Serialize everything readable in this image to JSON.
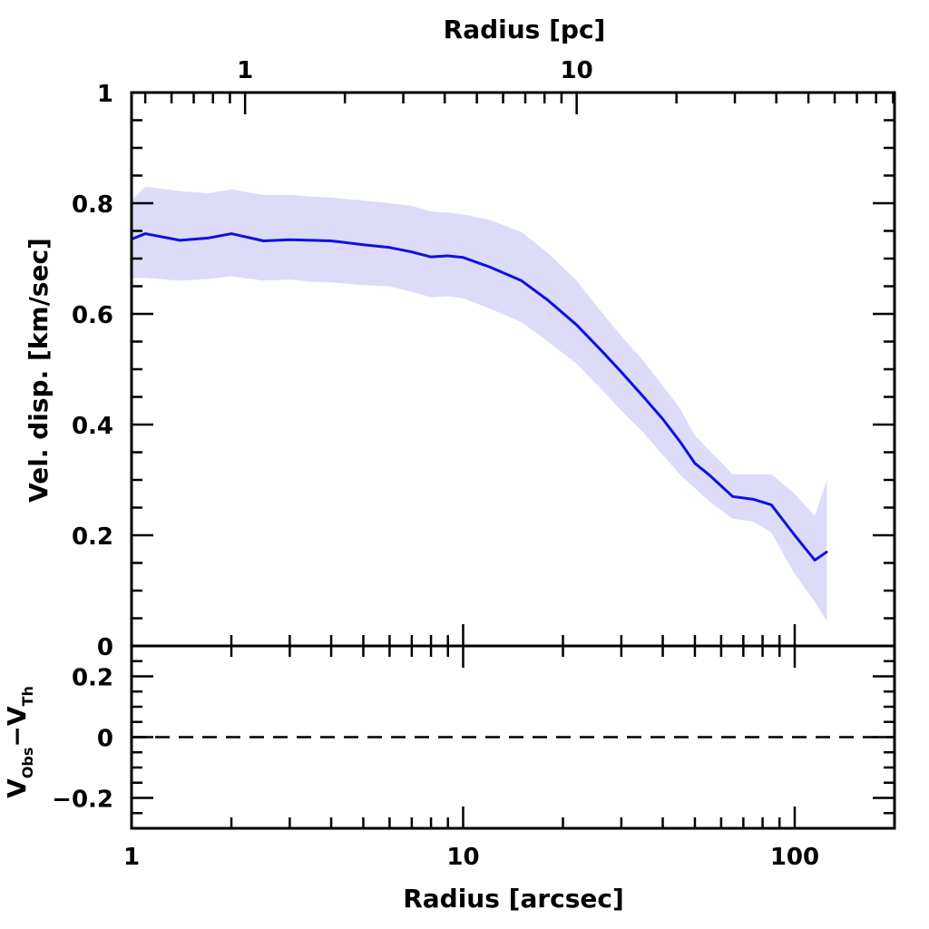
{
  "chart_data": {
    "type": "line",
    "x_scale": "log",
    "top_panel": {
      "ylabel": "Vel. disp. [km/sec]",
      "ylim": [
        0,
        1
      ],
      "yticks": [
        0,
        0.2,
        0.4,
        0.6,
        0.8,
        1
      ],
      "ytick_labels": [
        "0",
        "0.2",
        "0.4",
        "0.6",
        "0.8",
        "1"
      ],
      "series": [
        {
          "name": "velocity dispersion",
          "color": "#1010e0",
          "band_color": "#dcdcf8",
          "x": [
            1.0,
            1.1,
            1.4,
            1.7,
            2.0,
            2.5,
            3.0,
            3.5,
            4.0,
            5.0,
            6.0,
            7.0,
            8.0,
            9.0,
            10.0,
            12.0,
            15.0,
            18.0,
            22.0,
            26.0,
            30.0,
            35.0,
            40.0,
            45.0,
            50.0,
            55.0,
            65.0,
            75.0,
            85.0,
            100.0,
            115.0,
            125.0
          ],
          "y": [
            0.735,
            0.745,
            0.733,
            0.737,
            0.745,
            0.732,
            0.734,
            0.733,
            0.732,
            0.725,
            0.72,
            0.712,
            0.703,
            0.705,
            0.702,
            0.685,
            0.66,
            0.625,
            0.58,
            0.535,
            0.495,
            0.45,
            0.41,
            0.37,
            0.33,
            0.31,
            0.27,
            0.265,
            0.255,
            0.2,
            0.155,
            0.17
          ],
          "y_lower": [
            0.665,
            0.665,
            0.66,
            0.663,
            0.668,
            0.66,
            0.662,
            0.658,
            0.657,
            0.652,
            0.65,
            0.64,
            0.63,
            0.632,
            0.628,
            0.61,
            0.585,
            0.55,
            0.51,
            0.465,
            0.425,
            0.385,
            0.345,
            0.31,
            0.285,
            0.262,
            0.23,
            0.225,
            0.205,
            0.13,
            0.08,
            0.045
          ],
          "y_upper": [
            0.805,
            0.83,
            0.822,
            0.818,
            0.825,
            0.815,
            0.815,
            0.812,
            0.81,
            0.805,
            0.8,
            0.795,
            0.785,
            0.783,
            0.78,
            0.77,
            0.748,
            0.71,
            0.66,
            0.605,
            0.56,
            0.515,
            0.47,
            0.43,
            0.38,
            0.355,
            0.31,
            0.31,
            0.31,
            0.275,
            0.235,
            0.3
          ]
        }
      ]
    },
    "bottom_panel": {
      "ylabel_main": "V",
      "ylabel_sub1": "Obs",
      "ylabel_dash": "−V",
      "ylabel_sub2": "Th",
      "ylim": [
        -0.3,
        0.3
      ],
      "yticks": [
        -0.2,
        0,
        0.2
      ],
      "ytick_labels": [
        "−0.2",
        "0",
        "0.2"
      ],
      "reference_line": {
        "y": 0,
        "style": "dashed"
      }
    },
    "x_axis": {
      "xlabel": "Radius [arcsec]",
      "xlim": [
        1,
        200
      ],
      "ticks": [
        1,
        10,
        100
      ],
      "tick_labels": [
        "1",
        "10",
        "100"
      ]
    },
    "top_axis": {
      "xlabel": "Radius [pc]",
      "ticks_arcsec": [
        2.2,
        22
      ],
      "tick_labels": [
        "1",
        "10"
      ]
    }
  }
}
